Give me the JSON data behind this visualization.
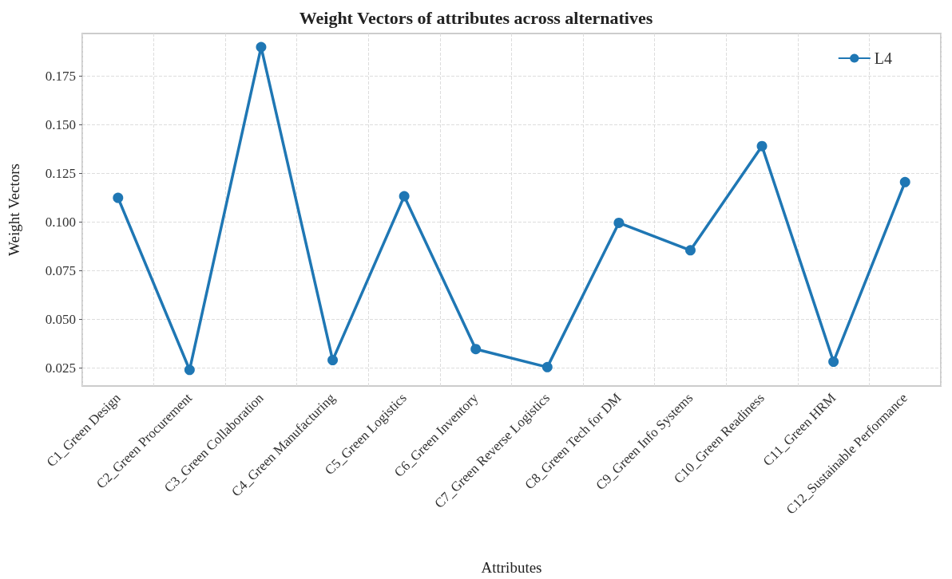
{
  "chart_data": {
    "type": "line",
    "title": "Weight Vectors of attributes across alternatives",
    "xlabel": "Attributes",
    "ylabel": "Weight Vectors",
    "categories": [
      "C1_Green Design",
      "C2_Green Procurement",
      "C3_Green Collaboration",
      "C4_Green Manufacturing",
      "C5_Green Logistics",
      "C6_Green Inventory",
      "C7_Green Reverse Logistics",
      "C8_Green Tech for DM",
      "C9_Green Info Systems",
      "C10_Green Readiness",
      "C11_Green HRM",
      "C12_Sustainable Performance"
    ],
    "series": [
      {
        "name": "L4",
        "color": "#1f77b4",
        "values": [
          0.1125,
          0.024,
          0.19,
          0.029,
          0.1133,
          0.0347,
          0.0254,
          0.0996,
          0.0855,
          0.1391,
          0.0282,
          0.1206
        ]
      }
    ],
    "ylim": [
      0.0157,
      0.197
    ],
    "yticks": [
      {
        "value": 0.025,
        "label": "0.025"
      },
      {
        "value": 0.05,
        "label": "0.050"
      },
      {
        "value": 0.075,
        "label": "0.075"
      },
      {
        "value": 0.1,
        "label": "0.100"
      },
      {
        "value": 0.125,
        "label": "0.125"
      },
      {
        "value": 0.15,
        "label": "0.150"
      },
      {
        "value": 0.175,
        "label": "0.175"
      }
    ],
    "grid": true,
    "legend": "top right",
    "marker": "circle",
    "line_style": "solid"
  }
}
